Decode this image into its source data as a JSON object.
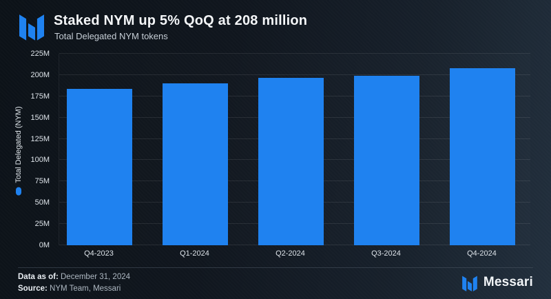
{
  "chart_data": {
    "type": "bar",
    "title": "Staked NYM up 5% QoQ at 208 million",
    "subtitle": "Total Delegated NYM tokens",
    "categories": [
      "Q4-2023",
      "Q1-2024",
      "Q2-2024",
      "Q3-2024",
      "Q4-2024"
    ],
    "values": [
      184,
      190,
      197,
      199,
      208
    ],
    "unit": "M",
    "ylabel": "Total Delegated (NYM)",
    "ylim": [
      0,
      225
    ],
    "ytick_step": 25,
    "ytick_labels": [
      "0M",
      "25M",
      "50M",
      "75M",
      "100M",
      "125M",
      "150M",
      "175M",
      "200M",
      "225M"
    ],
    "grid": true,
    "legend": {
      "label": "Total Delegated (NYM)",
      "position": "left-rotated",
      "marker_color": "#1f82f0"
    }
  },
  "footer": {
    "data_as_of_label": "Data as of:",
    "data_as_of_value": "December 31, 2024",
    "source_label": "Source:",
    "source_value": "NYM Team, Messari",
    "brand": "Messari"
  },
  "colors": {
    "bar": "#1f82f0",
    "accent_blue": "#1f82f0",
    "background_dark": "#0c1218",
    "background_light": "#22303e",
    "gridline": "rgba(255,255,255,0.09)",
    "tick_text": "#dde3e9",
    "title_text": "#f4f6f8",
    "subtitle_text": "#c7cfd7",
    "footer_text": "#aeb8c2",
    "divider": "#4b5663"
  },
  "icons": {
    "header_logo": "messari-mark",
    "footer_logo": "messari-mark",
    "legend_marker": "legend-dot"
  }
}
